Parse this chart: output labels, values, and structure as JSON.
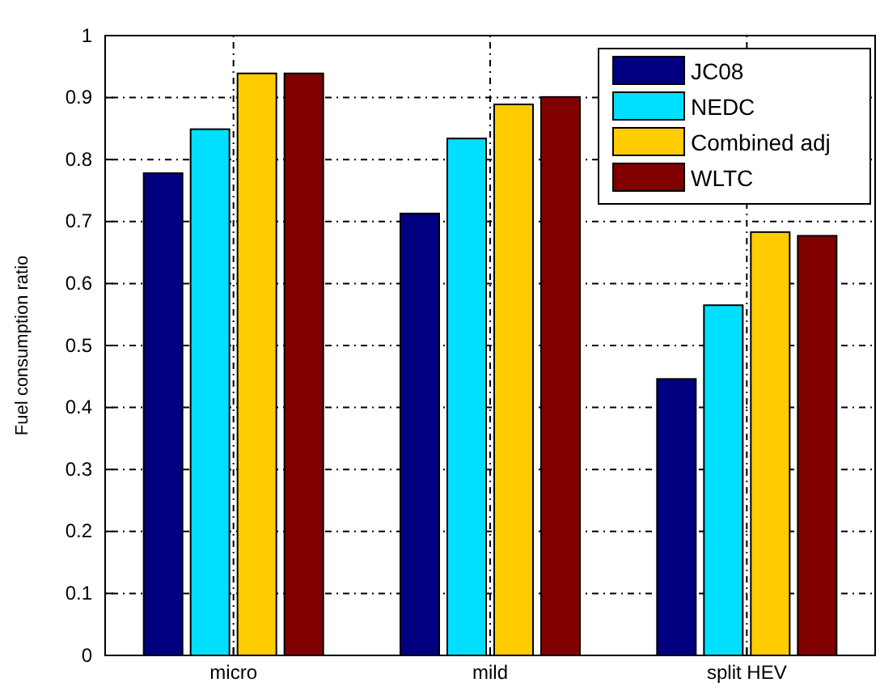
{
  "chart_data": {
    "type": "bar",
    "ylabel": "Fuel consumption ratio",
    "categories": [
      "micro",
      "mild",
      "split HEV"
    ],
    "series": [
      {
        "name": "JC08",
        "color": "#000080",
        "values": [
          0.778,
          0.713,
          0.446
        ]
      },
      {
        "name": "NEDC",
        "color": "#00dfff",
        "values": [
          0.849,
          0.834,
          0.565
        ]
      },
      {
        "name": "Combined adj",
        "color": "#ffcc00",
        "values": [
          0.939,
          0.889,
          0.683
        ]
      },
      {
        "name": "WLTC",
        "color": "#800000",
        "values": [
          0.939,
          0.901,
          0.677
        ]
      }
    ],
    "ylim": [
      0,
      1
    ],
    "yticks": [
      0,
      0.1,
      0.2,
      0.3,
      0.4,
      0.5,
      0.6,
      0.7,
      0.8,
      0.9,
      1
    ],
    "grid": true,
    "legend": "top right"
  }
}
